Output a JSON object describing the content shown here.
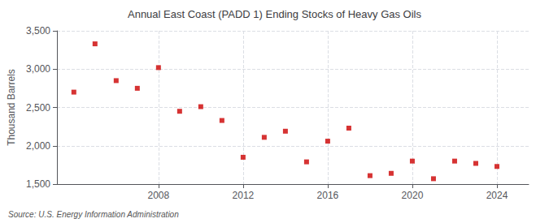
{
  "chart_data": {
    "type": "scatter",
    "title": "Annual East Coast (PADD 1) Ending Stocks of Heavy Gas Oils",
    "ylabel": "Thousand Barrels",
    "annotation": "Source: U.S. Energy Information Administration",
    "color": "#cc0000",
    "marker": "square",
    "x": [
      2004,
      2005,
      2006,
      2007,
      2008,
      2009,
      2010,
      2011,
      2012,
      2013,
      2014,
      2015,
      2016,
      2017,
      2018,
      2019,
      2020,
      2021,
      2022,
      2023,
      2024
    ],
    "values": [
      2700,
      3330,
      2850,
      2750,
      3020,
      2450,
      2510,
      2330,
      1850,
      2110,
      2190,
      1790,
      2060,
      2230,
      1610,
      1640,
      1800,
      1570,
      1800,
      1770,
      1730
    ],
    "xlim": [
      2003.2,
      2025.5
    ],
    "xticks": [
      2008,
      2012,
      2016,
      2020,
      2024
    ],
    "ylim": [
      1500,
      3500
    ],
    "yticks": [
      {
        "value": 1500,
        "label": "1,500"
      },
      {
        "value": 2000,
        "label": "2,000"
      },
      {
        "value": 2500,
        "label": "2,500"
      },
      {
        "value": 3000,
        "label": "3,000"
      },
      {
        "value": 3500,
        "label": "3,500"
      }
    ],
    "grid": true
  }
}
